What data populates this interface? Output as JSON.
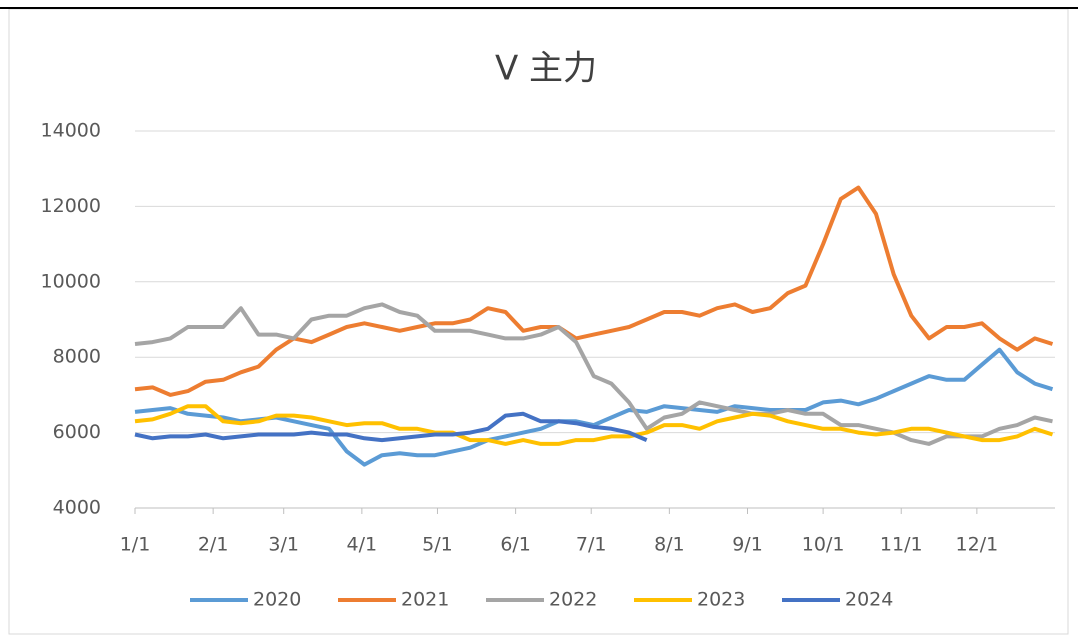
{
  "chart_data": {
    "type": "line",
    "title": "V 主力",
    "x": [
      0,
      7,
      14,
      21,
      28,
      35,
      42,
      49,
      56,
      63,
      70,
      77,
      84,
      91,
      98,
      105,
      112,
      119,
      126,
      133,
      140,
      147,
      154,
      161,
      168,
      175,
      182,
      189,
      196,
      203,
      210,
      217,
      224,
      231,
      238,
      245,
      252,
      259,
      266,
      273,
      280,
      287,
      294,
      301,
      308,
      315,
      322,
      329,
      336,
      343,
      350,
      357,
      364
    ],
    "xlim": [
      0,
      365
    ],
    "xticks": [
      {
        "value": 0,
        "label": "1/1"
      },
      {
        "value": 31,
        "label": "2/1"
      },
      {
        "value": 59,
        "label": "3/1"
      },
      {
        "value": 90,
        "label": "4/1"
      },
      {
        "value": 120,
        "label": "5/1"
      },
      {
        "value": 151,
        "label": "6/1"
      },
      {
        "value": 181,
        "label": "7/1"
      },
      {
        "value": 212,
        "label": "8/1"
      },
      {
        "value": 243,
        "label": "9/1"
      },
      {
        "value": 273,
        "label": "10/1"
      },
      {
        "value": 304,
        "label": "11/1"
      },
      {
        "value": 334,
        "label": "12/1"
      }
    ],
    "ylim": [
      4000,
      14000
    ],
    "yticks": [
      4000,
      6000,
      8000,
      10000,
      12000,
      14000
    ],
    "grid": true,
    "legend": "bottom",
    "series": [
      {
        "name": "2020",
        "color": "#5b9bd5",
        "values": [
          6550,
          6600,
          6650,
          6500,
          6450,
          6400,
          6300,
          6350,
          6400,
          6300,
          6200,
          6100,
          5500,
          5150,
          5400,
          5450,
          5400,
          5400,
          5500,
          5600,
          5800,
          5900,
          6000,
          6100,
          6300,
          6300,
          6200,
          6400,
          6600,
          6550,
          6700,
          6650,
          6600,
          6550,
          6700,
          6650,
          6600,
          6600,
          6600,
          6800,
          6850,
          6750,
          6900,
          7100,
          7300,
          7500,
          7400,
          7400,
          7800,
          8200,
          7600,
          7300,
          7150
        ]
      },
      {
        "name": "2021",
        "color": "#ed7d31",
        "values": [
          7150,
          7200,
          7000,
          7100,
          7350,
          7400,
          7600,
          7750,
          8200,
          8500,
          8400,
          8600,
          8800,
          8900,
          8800,
          8700,
          8800,
          8900,
          8900,
          9000,
          9300,
          9200,
          8700,
          8800,
          8800,
          8500,
          8600,
          8700,
          8800,
          9000,
          9200,
          9200,
          9100,
          9300,
          9400,
          9200,
          9300,
          9700,
          9900,
          11000,
          12200,
          12500,
          11800,
          10200,
          9100,
          8500,
          8800,
          8800,
          8900,
          8500,
          8200,
          8500,
          8350
        ]
      },
      {
        "name": "2022",
        "color": "#a5a5a5",
        "values": [
          8350,
          8400,
          8500,
          8800,
          8800,
          8800,
          9300,
          8600,
          8600,
          8500,
          9000,
          9100,
          9100,
          9300,
          9400,
          9200,
          9100,
          8700,
          8700,
          8700,
          8600,
          8500,
          8500,
          8600,
          8800,
          8400,
          7500,
          7300,
          6800,
          6100,
          6400,
          6500,
          6800,
          6700,
          6600,
          6500,
          6500,
          6600,
          6500,
          6500,
          6200,
          6200,
          6100,
          6000,
          5800,
          5700,
          5900,
          5900,
          5900,
          6100,
          6200,
          6400,
          6300
        ]
      },
      {
        "name": "2023",
        "color": "#ffc000",
        "values": [
          6300,
          6350,
          6500,
          6700,
          6700,
          6300,
          6250,
          6300,
          6450,
          6450,
          6400,
          6300,
          6200,
          6250,
          6250,
          6100,
          6100,
          6000,
          6000,
          5800,
          5800,
          5700,
          5800,
          5700,
          5700,
          5800,
          5800,
          5900,
          5900,
          6000,
          6200,
          6200,
          6100,
          6300,
          6400,
          6500,
          6450,
          6300,
          6200,
          6100,
          6100,
          6000,
          5950,
          6000,
          6100,
          6100,
          6000,
          5900,
          5800,
          5800,
          5900,
          6100,
          5950
        ]
      },
      {
        "name": "2024",
        "color": "#4472c4",
        "values": [
          5950,
          5850,
          5900,
          5900,
          5950,
          5850,
          5900,
          5950,
          5950,
          5950,
          6000,
          5950,
          5950,
          5850,
          5800,
          5850,
          5900,
          5950,
          5950,
          6000,
          6100,
          6450,
          6500,
          6300,
          6300,
          6250,
          6150,
          6100,
          6000,
          5800,
          null,
          null,
          null,
          null,
          null,
          null,
          null,
          null,
          null,
          null,
          null,
          null,
          null,
          null,
          null,
          null,
          null,
          null,
          null,
          null,
          null,
          null,
          null
        ]
      }
    ]
  }
}
